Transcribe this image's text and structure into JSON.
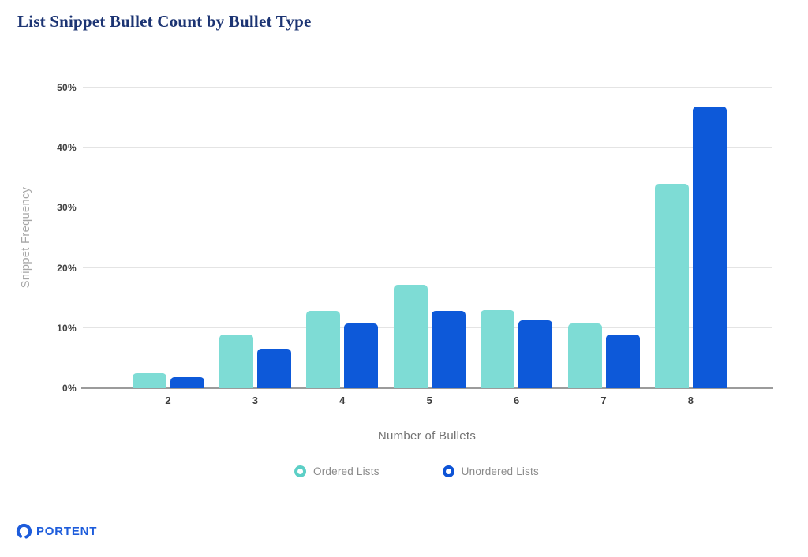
{
  "header": {
    "title": "List Snippet Bullet Count by Bullet Type",
    "title_color": "#1c3473"
  },
  "chart_data": {
    "type": "bar",
    "title": "List Snippet Bullet Count by Bullet Type",
    "categories": [
      "2",
      "3",
      "4",
      "5",
      "6",
      "7",
      "8"
    ],
    "series": [
      {
        "name": "Ordered Lists",
        "color": "#7edcd5",
        "values": [
          2.5,
          8.9,
          12.9,
          17.2,
          13.0,
          10.7,
          34.0
        ]
      },
      {
        "name": "Unordered Lists",
        "color": "#0d59d9",
        "values": [
          1.8,
          6.5,
          10.7,
          12.8,
          11.3,
          8.9,
          46.9
        ]
      }
    ],
    "xlabel": "Number of Bullets",
    "ylabel": "Snippet Frequency",
    "ylim": [
      0,
      50
    ],
    "ytick_step": 10,
    "ytick_labels": [
      "0%",
      "10%",
      "20%",
      "30%",
      "40%",
      "50%"
    ],
    "grid": true,
    "legend_position": "bottom"
  },
  "legend": {
    "items": [
      {
        "label": "Ordered Lists",
        "ring_color": "#5ccfc6"
      },
      {
        "label": "Unordered Lists",
        "ring_color": "#0d53d6"
      }
    ]
  },
  "footer": {
    "brand": "PORTENT",
    "brand_color": "#1d5cdb"
  }
}
